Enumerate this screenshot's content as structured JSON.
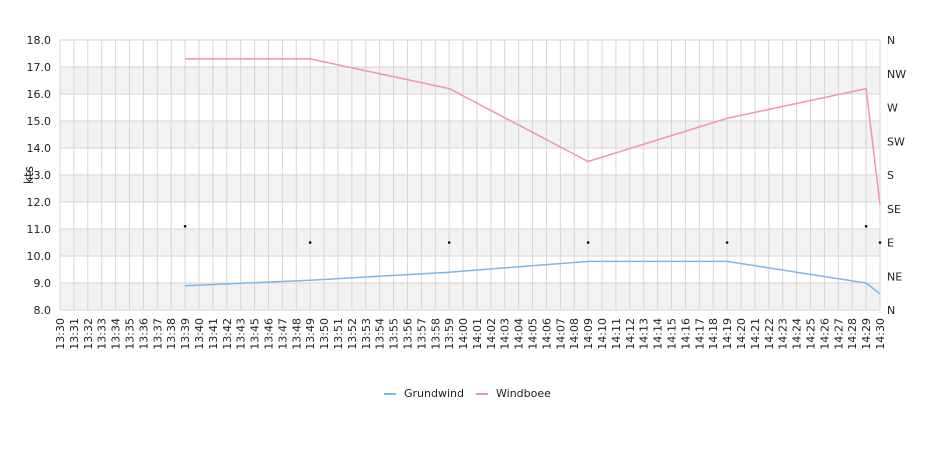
{
  "chart_data": {
    "type": "line",
    "ylabel": "kts",
    "ylim": [
      8.0,
      18.0
    ],
    "y_ticks": [
      "8.0",
      "9.0",
      "10.0",
      "11.0",
      "12.0",
      "13.0",
      "14.0",
      "15.0",
      "16.0",
      "17.0",
      "18.0"
    ],
    "y2_ticks": [
      "N",
      "NE",
      "E",
      "SE",
      "S",
      "SW",
      "W",
      "NW",
      "N"
    ],
    "x_ticks": [
      "13:30",
      "13:31",
      "13:32",
      "13:33",
      "13:34",
      "13:35",
      "13:36",
      "13:37",
      "13:38",
      "13:39",
      "13:40",
      "13:41",
      "13:42",
      "13:43",
      "13:45",
      "13:46",
      "13:47",
      "13:48",
      "13:49",
      "13:50",
      "13:51",
      "13:52",
      "13:53",
      "13:54",
      "13:55",
      "13:56",
      "13:57",
      "13:58",
      "13:59",
      "14:00",
      "14:01",
      "14:02",
      "14:03",
      "14:04",
      "14:05",
      "14:06",
      "14:07",
      "14:08",
      "14:09",
      "14:10",
      "14:11",
      "14:12",
      "14:13",
      "14:14",
      "14:15",
      "14:16",
      "14:17",
      "14:18",
      "14:19",
      "14:20",
      "14:21",
      "14:22",
      "14:23",
      "14:24",
      "14:25",
      "14:26",
      "14:27",
      "14:28",
      "14:29",
      "14:30"
    ],
    "grid": true,
    "legend_position": "bottom-center",
    "series": [
      {
        "name": "Grundwind",
        "color": "#7cb5ec",
        "x": [
          "13:39",
          "13:49",
          "13:59",
          "14:09",
          "14:19",
          "14:29",
          "14:30"
        ],
        "values": [
          8.9,
          9.1,
          9.4,
          9.8,
          9.8,
          9.0,
          8.6
        ]
      },
      {
        "name": "Windboee",
        "color": "#f191c0",
        "x": [
          "13:39",
          "13:49",
          "13:59",
          "14:09",
          "14:19",
          "14:29",
          "14:30"
        ],
        "values": [
          17.3,
          17.3,
          16.2,
          13.5,
          15.1,
          16.2,
          11.9
        ]
      },
      {
        "name": "",
        "kind": "direction-markers",
        "color": "#000000",
        "x": [
          "13:39",
          "13:49",
          "13:59",
          "14:09",
          "14:19",
          "14:29",
          "14:30"
        ],
        "values": [
          11.1,
          10.5,
          10.5,
          10.5,
          10.5,
          11.1,
          10.5
        ]
      }
    ]
  }
}
